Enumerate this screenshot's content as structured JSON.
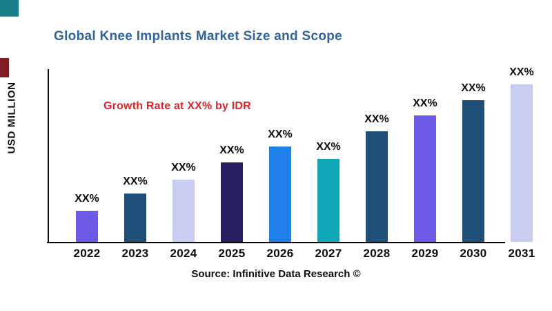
{
  "header": {
    "title": "Global Knee Implants Market Size and Scope",
    "title_color": "#31639C"
  },
  "annotation": {
    "text": "Growth Rate at XX% by IDR",
    "color": "#DE2429"
  },
  "axes": {
    "y_label": "USD MILLION"
  },
  "footer": {
    "source_text": "Source: Infinitive Data Research ©"
  },
  "accents": {
    "teal_square_color": "#177E89",
    "maroon_square_color": "#7E1E24"
  },
  "chart_data": {
    "type": "bar",
    "title": "Global Knee Implants Market Size and Scope",
    "categories": [
      "2022",
      "2023",
      "2024",
      "2025",
      "2026",
      "2027",
      "2028",
      "2029",
      "2030",
      "2031"
    ],
    "values_relative": [
      18,
      28,
      36,
      46,
      55,
      48,
      64,
      73,
      82,
      91
    ],
    "bar_labels": [
      "XX%",
      "XX%",
      "XX%",
      "XX%",
      "XX%",
      "XX%",
      "XX%",
      "XX%",
      "XX%",
      "XX%"
    ],
    "bar_colors": [
      "#6B5BE6",
      "#1F4E79",
      "#C9CDF1",
      "#252060",
      "#1E80E8",
      "#0FA6B5",
      "#1F4E79",
      "#6B5BE6",
      "#1F4E79",
      "#C9CDF1"
    ],
    "xlabel": "",
    "ylabel": "USD MILLION",
    "y_tick_labels": [],
    "gridlines": false,
    "legend": false,
    "annotation": "Growth Rate at XX% by IDR",
    "source": "Source: Infinitive Data Research ©"
  }
}
